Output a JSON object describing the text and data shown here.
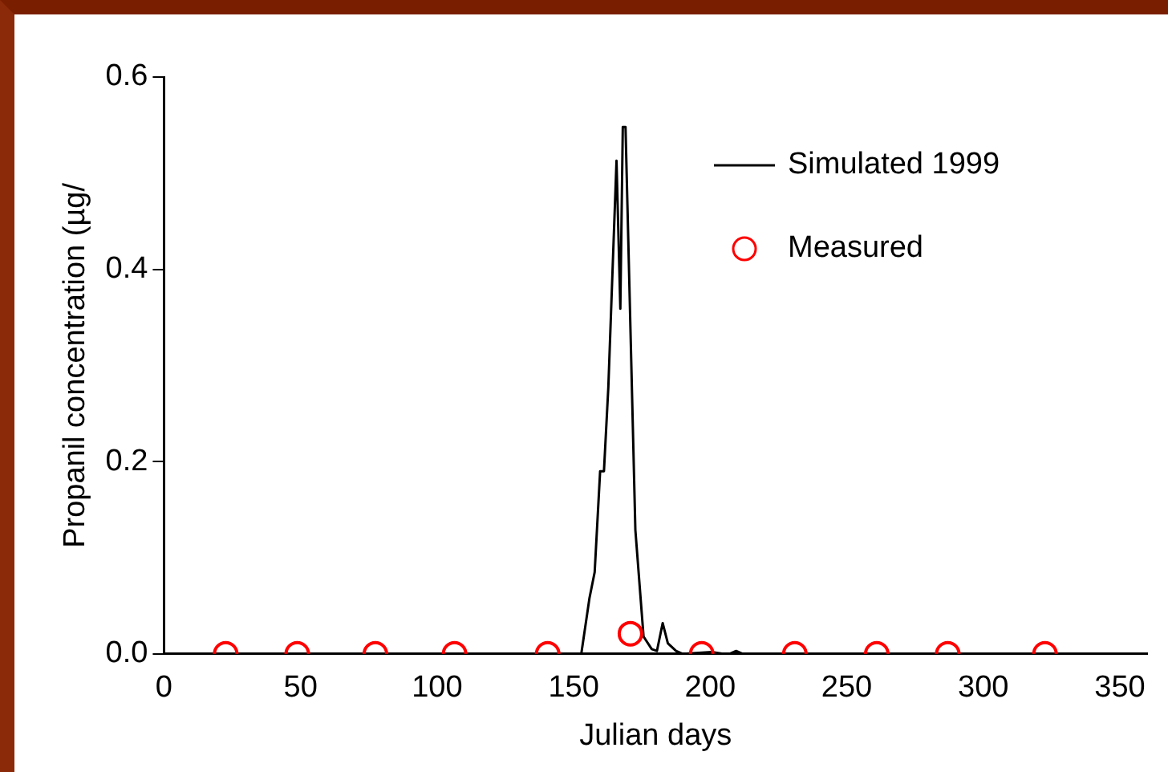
{
  "chart_data": {
    "type": "line",
    "xlabel": "Julian days",
    "ylabel": "Propanil concentration (µg/",
    "xlim": [
      0,
      360
    ],
    "xticks": [
      0,
      50,
      100,
      150,
      200,
      250,
      300,
      350
    ],
    "ylim": [
      0,
      0.6
    ],
    "yticks": [
      {
        "value": 0,
        "label": "0.0"
      },
      0.2,
      0.4,
      0.6
    ],
    "grid": false,
    "legend": "top right",
    "series": [
      {
        "name": "Simulated 1999",
        "color": "#000000",
        "marker": "none",
        "line_style": "solid",
        "x": [
          0,
          152.8,
          155.8,
          157.7,
          159.7,
          161.1,
          162.7,
          165.7,
          167.1,
          168.0,
          169.0,
          172.6,
          175.6,
          178.6,
          180.5,
          182.6,
          184.5,
          187.5,
          190,
          200.5,
          204.8,
          207,
          209.5,
          212,
          360
        ],
        "values": [
          0,
          0,
          0.058,
          0.085,
          0.19,
          0.19,
          0.277,
          0.513,
          0.359,
          0.548,
          0.548,
          0.129,
          0.018,
          0.005,
          0.003,
          0.032,
          0.011,
          0.003,
          0,
          0.002,
          0,
          0,
          0.003,
          0,
          0
        ]
      },
      {
        "name": "Measured",
        "type": "scatter",
        "color": "#ff0000",
        "marker": "circle",
        "x": [
          22.6,
          48.8,
          77.4,
          106.4,
          140.5,
          170.8,
          196.9,
          231,
          261,
          287,
          322.6
        ],
        "values": [
          0,
          0,
          0,
          0,
          0,
          0.021,
          0,
          0,
          0,
          0,
          0
        ]
      }
    ]
  }
}
